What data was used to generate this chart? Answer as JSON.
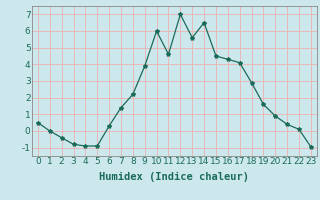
{
  "x": [
    0,
    1,
    2,
    3,
    4,
    5,
    6,
    7,
    8,
    9,
    10,
    11,
    12,
    13,
    14,
    15,
    16,
    17,
    18,
    19,
    20,
    21,
    22,
    23
  ],
  "y": [
    0.5,
    0.0,
    -0.4,
    -0.8,
    -0.9,
    -0.9,
    0.3,
    1.4,
    2.2,
    3.9,
    6.0,
    4.6,
    7.0,
    5.6,
    6.5,
    4.5,
    4.3,
    4.1,
    2.9,
    1.6,
    0.9,
    0.4,
    0.1,
    -0.95
  ],
  "line_color": "#1a6b5a",
  "marker": "*",
  "marker_size": 3,
  "bg_color": "#cde8ec",
  "grid_color": "#e8b8b8",
  "xlabel": "Humidex (Indice chaleur)",
  "ylim": [
    -1.5,
    7.5
  ],
  "xlim": [
    -0.5,
    23.5
  ],
  "yticks": [
    -1,
    0,
    1,
    2,
    3,
    4,
    5,
    6,
    7
  ],
  "xticks": [
    0,
    1,
    2,
    3,
    4,
    5,
    6,
    7,
    8,
    9,
    10,
    11,
    12,
    13,
    14,
    15,
    16,
    17,
    18,
    19,
    20,
    21,
    22,
    23
  ],
  "label_fontsize": 7.5,
  "tick_fontsize": 6.5,
  "tick_color": "#1a6b5a",
  "spine_color": "#888888"
}
